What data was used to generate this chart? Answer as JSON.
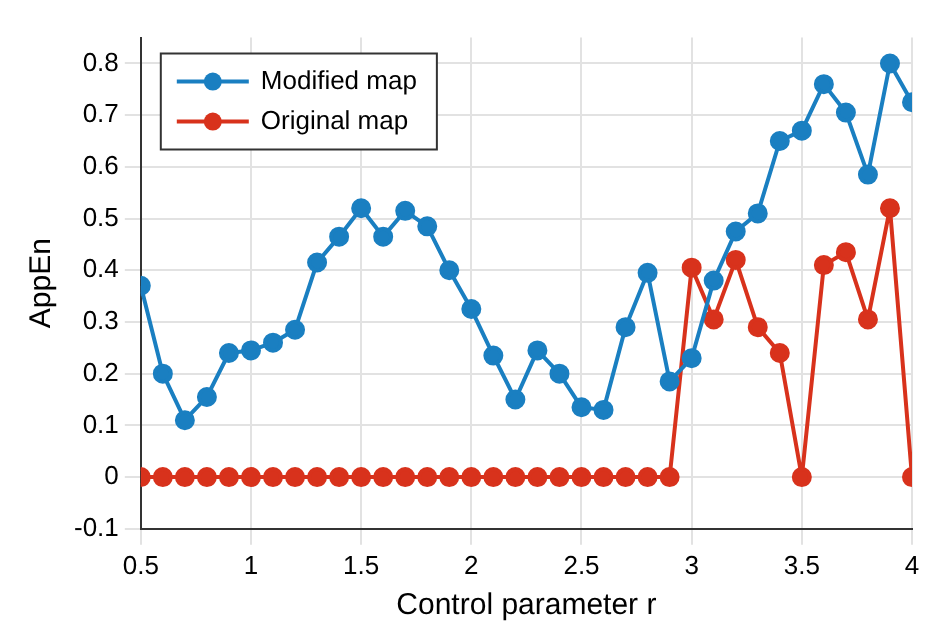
{
  "chart_data": {
    "type": "line",
    "xlabel": "Control parameter r",
    "ylabel": "AppEn",
    "x": [
      0.5,
      0.6,
      0.7,
      0.8,
      0.9,
      1.0,
      1.1,
      1.2,
      1.3,
      1.4,
      1.5,
      1.6,
      1.7,
      1.8,
      1.9,
      2.0,
      2.1,
      2.2,
      2.3,
      2.4,
      2.5,
      2.6,
      2.7,
      2.8,
      2.9,
      3.0,
      3.1,
      3.2,
      3.3,
      3.4,
      3.5,
      3.6,
      3.7,
      3.8,
      3.9,
      4.0
    ],
    "series": [
      {
        "name": "Modified map",
        "color": "#1a7fc1",
        "values": [
          0.37,
          0.2,
          0.11,
          0.155,
          0.24,
          0.245,
          0.26,
          0.285,
          0.415,
          0.465,
          0.52,
          0.465,
          0.515,
          0.485,
          0.4,
          0.325,
          0.235,
          0.15,
          0.245,
          0.2,
          0.135,
          0.13,
          0.29,
          0.395,
          0.185,
          0.23,
          0.38,
          0.475,
          0.51,
          0.65,
          0.67,
          0.76,
          0.705,
          0.585,
          0.8,
          0.725
        ]
      },
      {
        "name": "Original map",
        "color": "#d8321c",
        "values": [
          0,
          0,
          0,
          0,
          0,
          0,
          0,
          0,
          0,
          0,
          0,
          0,
          0,
          0,
          0,
          0,
          0,
          0,
          0,
          0,
          0,
          0,
          0,
          0,
          0,
          0.405,
          0.305,
          0.42,
          0.29,
          0.24,
          0,
          0.41,
          0.435,
          0.305,
          0.52,
          0
        ]
      }
    ],
    "xlim": [
      0.5,
      4
    ],
    "xticks": [
      0.5,
      1,
      1.5,
      2,
      2.5,
      3,
      3.5,
      4
    ],
    "ylim": [
      -0.1,
      0.85
    ],
    "yticks": [
      -0.1,
      0,
      0.1,
      0.2,
      0.3,
      0.4,
      0.5,
      0.6,
      0.7,
      0.8
    ],
    "grid": true,
    "legend": "top left",
    "marker": "circle",
    "line_style": "solid"
  }
}
